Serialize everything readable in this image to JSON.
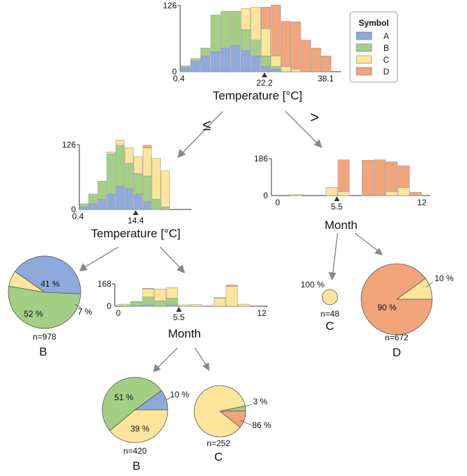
{
  "colors": {
    "A": "#8ea9db",
    "B": "#a3cf85",
    "C": "#fde69a",
    "D": "#f2a47b"
  },
  "legend": {
    "title": "Symbol",
    "items": [
      {
        "key": "A",
        "label": "A"
      },
      {
        "key": "B",
        "label": "B"
      },
      {
        "key": "C",
        "label": "C"
      },
      {
        "key": "D",
        "label": "D"
      }
    ]
  },
  "edges": {
    "le": "≤",
    "gt": ">"
  },
  "chart_data": [
    {
      "id": "root",
      "type": "bar",
      "xlabel": "Temperature [°C]",
      "ymax_label": "126",
      "ymin_label": "0",
      "xmin_label": "0.4",
      "xmax_label": "38.1",
      "split_label": "22.2",
      "ymax": 126,
      "stacks": [
        [
          8,
          3,
          0,
          0
        ],
        [
          20,
          5,
          0,
          0
        ],
        [
          30,
          15,
          0,
          0
        ],
        [
          38,
          70,
          0,
          0
        ],
        [
          45,
          70,
          0,
          0
        ],
        [
          50,
          65,
          0,
          0
        ],
        [
          40,
          40,
          40,
          0
        ],
        [
          30,
          30,
          63,
          0
        ],
        [
          10,
          20,
          52,
          41
        ],
        [
          5,
          5,
          20,
          97
        ],
        [
          0,
          0,
          10,
          86
        ],
        [
          0,
          0,
          5,
          90
        ],
        [
          0,
          0,
          0,
          60
        ],
        [
          0,
          0,
          0,
          45
        ],
        [
          0,
          0,
          0,
          30
        ]
      ]
    },
    {
      "id": "left",
      "type": "bar",
      "xlabel": "Temperature [°C]",
      "ymax_label": "126",
      "ymin_label": "0",
      "xmin_label": "0.4",
      "split_label": "14.4",
      "ymax": 126,
      "stacks": [
        [
          5,
          6,
          0,
          0
        ],
        [
          12,
          18,
          0,
          0
        ],
        [
          20,
          35,
          0,
          0
        ],
        [
          30,
          78,
          4,
          0
        ],
        [
          45,
          80,
          10,
          0
        ],
        [
          40,
          50,
          30,
          0
        ],
        [
          30,
          40,
          33,
          0
        ],
        [
          15,
          50,
          55,
          5
        ],
        [
          0,
          20,
          80,
          0
        ],
        [
          0,
          5,
          70,
          0
        ]
      ]
    },
    {
      "id": "right",
      "type": "bar",
      "xlabel": "Month",
      "ymax_label": "186",
      "ymin_label": "0",
      "xmin_label": "0",
      "xmax_label": "12",
      "split_label": "5.5",
      "ymax": 186,
      "stacks": [
        [
          0,
          0,
          5,
          0
        ],
        [
          0,
          0,
          40,
          0
        ],
        [
          0,
          0,
          20,
          160
        ],
        [
          0,
          0,
          0,
          178
        ],
        [
          0,
          0,
          0,
          180
        ],
        [
          0,
          0,
          20,
          150
        ],
        [
          0,
          0,
          40,
          110
        ],
        [
          0,
          0,
          0,
          16
        ]
      ],
      "months": [
        2,
        5,
        6,
        8,
        9,
        10,
        11,
        12
      ]
    },
    {
      "id": "mid",
      "type": "bar",
      "xlabel": "Month",
      "ymax_label": "168",
      "ymin_label": "0",
      "xmin_label": "0",
      "xmax_label": "12",
      "split_label": "5.5",
      "ymax": 168,
      "stacks": [
        [
          0,
          5,
          10,
          0
        ],
        [
          3,
          30,
          2,
          0
        ],
        [
          10,
          60,
          60,
          5
        ],
        [
          0,
          40,
          90,
          0
        ],
        [
          10,
          50,
          80,
          0
        ],
        [
          0,
          0,
          10,
          0
        ],
        [
          0,
          0,
          12,
          0
        ],
        [
          0,
          0,
          5,
          0
        ],
        [
          0,
          0,
          60,
          5
        ],
        [
          0,
          0,
          150,
          10
        ],
        [
          0,
          0,
          15,
          0
        ]
      ],
      "months": [
        1,
        2,
        3,
        4,
        5,
        6,
        7,
        8,
        9,
        10,
        11
      ]
    },
    {
      "id": "pie_b1",
      "type": "pie",
      "n": "n=978",
      "class": "B",
      "slices": [
        {
          "key": "A",
          "value": 41,
          "label": "41 %"
        },
        {
          "key": "B",
          "value": 52,
          "label": "52 %"
        },
        {
          "key": "C",
          "value": 7,
          "label": "7 %"
        }
      ]
    },
    {
      "id": "pie_c1",
      "type": "pie",
      "n": "n=48",
      "class": "C",
      "slices": [
        {
          "key": "C",
          "value": 100,
          "label": "100 %"
        }
      ]
    },
    {
      "id": "pie_d",
      "type": "pie",
      "n": "n=672",
      "class": "D",
      "slices": [
        {
          "key": "C",
          "value": 10,
          "label": "10 %"
        },
        {
          "key": "D",
          "value": 90,
          "label": "90 %"
        }
      ]
    },
    {
      "id": "pie_b2",
      "type": "pie",
      "n": "n=420",
      "class": "B",
      "slices": [
        {
          "key": "A",
          "value": 10,
          "label": "10 %"
        },
        {
          "key": "B",
          "value": 51,
          "label": "51 %"
        },
        {
          "key": "C",
          "value": 39,
          "label": "39 %"
        }
      ]
    },
    {
      "id": "pie_c2",
      "type": "pie",
      "n": "n=252",
      "class": "C",
      "slices": [
        {
          "key": "B",
          "value": 3,
          "label": "3 %"
        },
        {
          "key": "D",
          "value": 11,
          "label": "11 %"
        },
        {
          "key": "C",
          "value": 86,
          "label": "86 %"
        }
      ]
    }
  ]
}
